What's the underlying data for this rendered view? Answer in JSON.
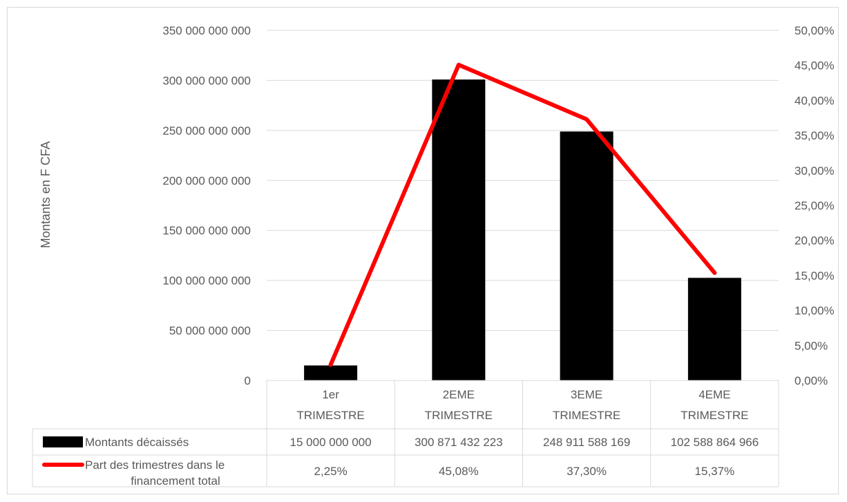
{
  "chart_data": {
    "type": "bar",
    "title": "",
    "ylabel": "Montants en F CFA",
    "ylim": [
      0,
      350000000000
    ],
    "y2lim": [
      0,
      0.5
    ],
    "y_ticks": [
      "0",
      "50 000 000 000",
      "100 000 000 000",
      "150 000 000 000",
      "200 000 000 000",
      "250 000 000 000",
      "300 000 000 000",
      "350 000 000 000"
    ],
    "y2_ticks": [
      "0,00%",
      "5,00%",
      "10,00%",
      "15,00%",
      "20,00%",
      "25,00%",
      "30,00%",
      "35,00%",
      "40,00%",
      "45,00%",
      "50,00%"
    ],
    "categories": [
      [
        "1er",
        "TRIMESTRE"
      ],
      [
        "2EME",
        "TRIMESTRE"
      ],
      [
        "3EME",
        "TRIMESTRE"
      ],
      [
        "4EME",
        "TRIMESTRE"
      ]
    ],
    "series": [
      {
        "name": "Montants décaissés",
        "kind": "bar",
        "axis": "left",
        "color": "#000000",
        "values": [
          15000000000,
          300871432223,
          248911588169,
          102588864966
        ],
        "labels": [
          "15 000 000 000",
          "300 871 432 223",
          "248 911 588 169",
          "102 588 864 966"
        ]
      },
      {
        "name": "Part des trimestres dans le financement total",
        "name_lines": [
          "Part des trimestres dans le",
          "financement total"
        ],
        "kind": "line",
        "axis": "right",
        "color": "#ff0000",
        "values": [
          0.0225,
          0.4508,
          0.373,
          0.1537
        ],
        "labels": [
          "2,25%",
          "45,08%",
          "37,30%",
          "15,37%"
        ]
      }
    ],
    "grid": true,
    "legend": "data-table"
  }
}
